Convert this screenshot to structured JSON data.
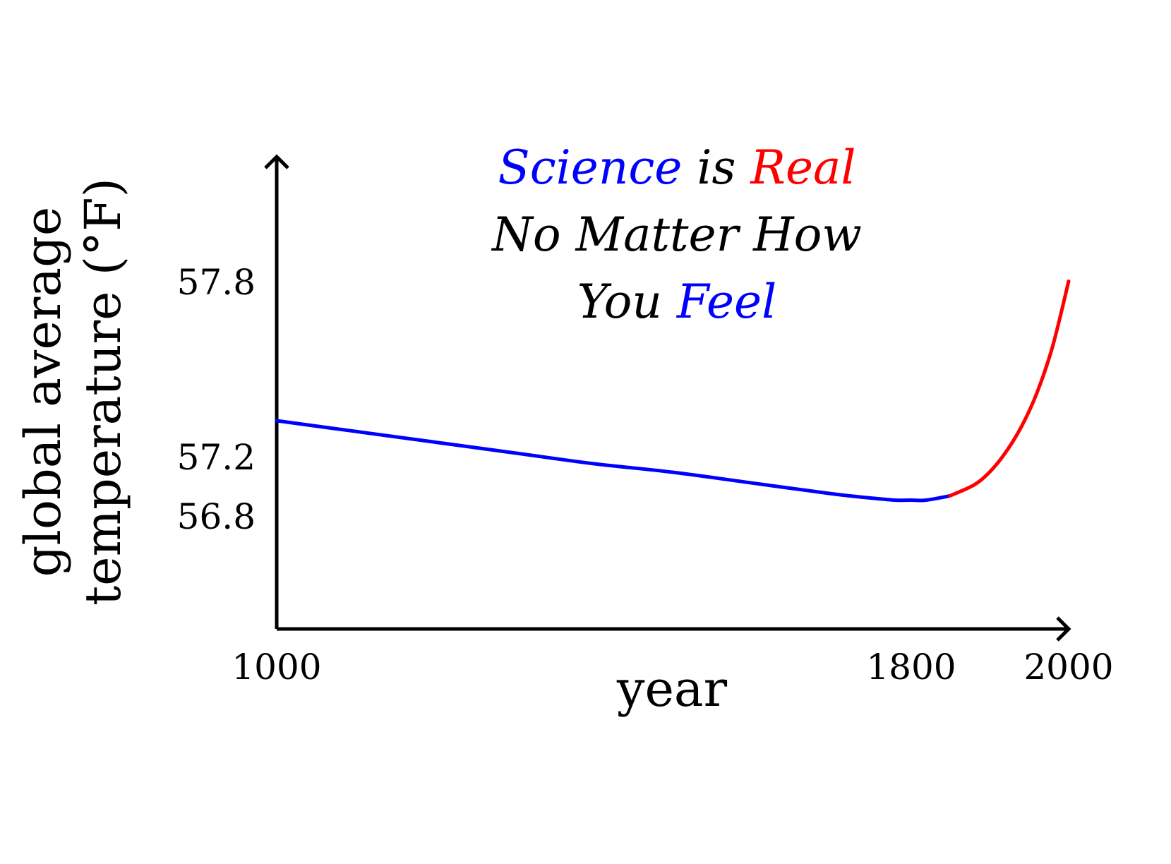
{
  "chart_data": {
    "type": "line",
    "xlabel": "year",
    "ylabel_lines": [
      "global average",
      "temperature (°F)"
    ],
    "x_ticks": [
      1000,
      1800,
      2000
    ],
    "y_ticks": [
      56.8,
      57.2,
      57.8
    ],
    "xlim": [
      1000,
      2000
    ],
    "ylim": [
      56.2,
      58.4
    ],
    "grid": false,
    "legend": "none",
    "annotation": {
      "line1": [
        {
          "text": "Science",
          "color": "#0000ff"
        },
        {
          "text": " is ",
          "color": "#000000"
        },
        {
          "text": "Real",
          "color": "#ff0000"
        }
      ],
      "line2": [
        {
          "text": "No Matter How",
          "color": "#000000"
        }
      ],
      "line3": [
        {
          "text": "You ",
          "color": "#000000"
        },
        {
          "text": "Feel",
          "color": "#0000ff"
        }
      ]
    },
    "series": [
      {
        "color": "#0000ff",
        "x": [
          1000,
          1100,
          1200,
          1300,
          1400,
          1500,
          1600,
          1700,
          1750,
          1780,
          1800,
          1820,
          1850
        ],
        "y": [
          57.17,
          57.12,
          57.07,
          57.02,
          56.97,
          56.93,
          56.88,
          56.83,
          56.81,
          56.8,
          56.8,
          56.8,
          56.82
        ]
      },
      {
        "color": "#ff0000",
        "x": [
          1850,
          1880,
          1900,
          1920,
          1940,
          1960,
          1980,
          2000
        ],
        "y": [
          56.82,
          56.87,
          56.93,
          57.02,
          57.14,
          57.3,
          57.52,
          57.82
        ]
      }
    ]
  }
}
